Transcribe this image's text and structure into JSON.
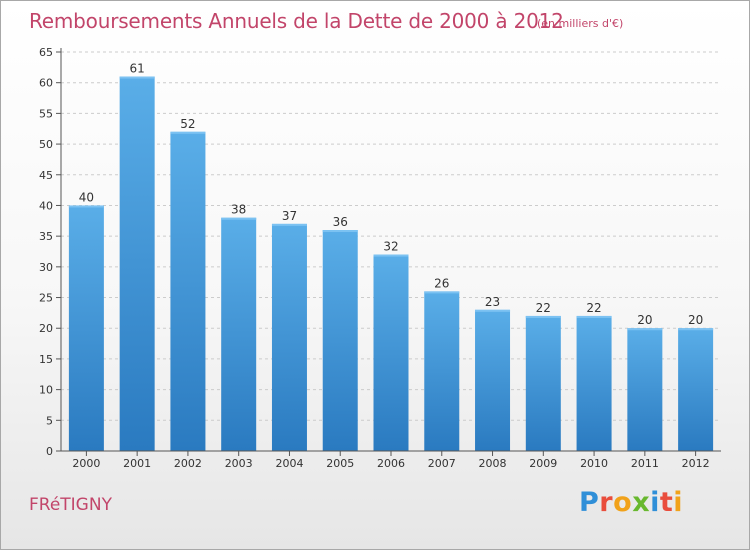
{
  "chart_data": {
    "type": "bar",
    "title": "Remboursements Annuels de la Dette de 2000 à 2012",
    "subtitle": "(en milliers d'€)",
    "categories": [
      "2000",
      "2001",
      "2002",
      "2003",
      "2004",
      "2005",
      "2006",
      "2007",
      "2008",
      "2009",
      "2010",
      "2011",
      "2012"
    ],
    "values": [
      40,
      61,
      52,
      38,
      37,
      36,
      32,
      26,
      23,
      22,
      22,
      20,
      20
    ],
    "ylim": [
      0,
      65
    ],
    "yticks": [
      0,
      5,
      10,
      15,
      20,
      25,
      30,
      35,
      40,
      45,
      50,
      55,
      60,
      65
    ],
    "grid": "horizontal",
    "bar_color_top": "#5aaee8",
    "bar_color_bottom": "#2a7ac0"
  },
  "footer": {
    "commune": "FRéTIGNY",
    "logo_letters": [
      {
        "ch": "P",
        "color": "#2f8fd8"
      },
      {
        "ch": "r",
        "color": "#e94d3c"
      },
      {
        "ch": "o",
        "color": "#f1a21a"
      },
      {
        "ch": "x",
        "color": "#68b82e"
      },
      {
        "ch": "i",
        "color": "#2f8fd8"
      },
      {
        "ch": "t",
        "color": "#e94d3c"
      },
      {
        "ch": "i",
        "color": "#f1a21a"
      }
    ]
  },
  "colors": {
    "title": "#c2456a",
    "axis_text": "#333333",
    "grid": "#cccccc"
  }
}
